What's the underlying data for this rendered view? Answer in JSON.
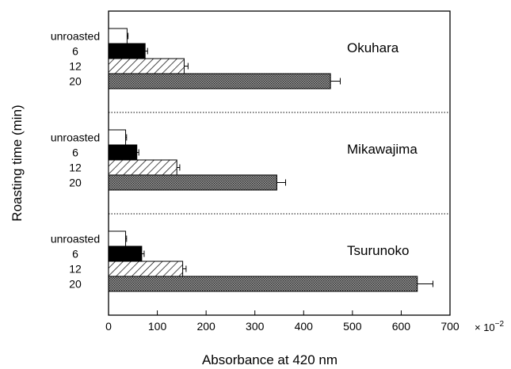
{
  "chart_data": {
    "type": "bar",
    "orientation": "horizontal",
    "xlabel": "Absorbance at 420 nm",
    "ylabel": "Roasting time (min)",
    "x_multiplier": "× 10",
    "x_multiplier_exponent": "−2",
    "xlim": [
      0,
      700
    ],
    "xticks": [
      0,
      100,
      200,
      300,
      400,
      500,
      600,
      700
    ],
    "grid": false,
    "categories": [
      "unroasted",
      "6",
      "12",
      "20"
    ],
    "category_styles": [
      "white",
      "black",
      "hatched",
      "dotted"
    ],
    "groups": [
      {
        "name": "Okuhara",
        "values": [
          38,
          75,
          155,
          455
        ],
        "errors": [
          2,
          5,
          8,
          20
        ]
      },
      {
        "name": "Mikawajima",
        "values": [
          35,
          58,
          140,
          345
        ],
        "errors": [
          2,
          4,
          6,
          18
        ]
      },
      {
        "name": "Tsurunoko",
        "values": [
          35,
          68,
          152,
          633
        ],
        "errors": [
          2,
          5,
          7,
          32
        ]
      }
    ]
  }
}
